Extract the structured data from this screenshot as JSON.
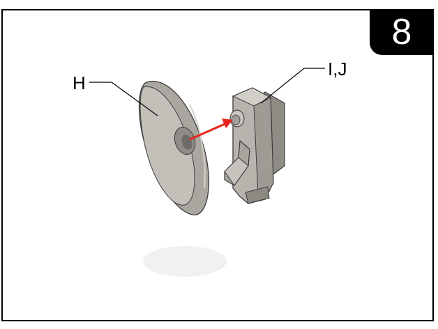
{
  "step": {
    "number": "8"
  },
  "parts": [
    {
      "id": "H",
      "label": "H"
    },
    {
      "id": "IJ",
      "label": "I,J"
    }
  ],
  "colors": {
    "part_fill": "#b7b4ae",
    "part_dark": "#8f8c86",
    "part_light": "#d2cfc9",
    "outline": "#3a3a3a",
    "arrow": "#e8241c",
    "badge": "#000000"
  },
  "icons": {
    "arrow": "red-assembly-arrow"
  }
}
